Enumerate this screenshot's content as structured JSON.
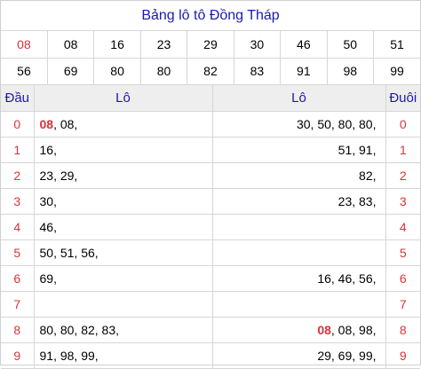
{
  "title": "Bảng lô tô Đồng Tháp",
  "numbers": {
    "row1": [
      "08",
      "08",
      "16",
      "23",
      "29",
      "30",
      "46",
      "50",
      "51"
    ],
    "row2": [
      "56",
      "69",
      "80",
      "80",
      "82",
      "83",
      "91",
      "98",
      "99"
    ],
    "highlight_index": 0
  },
  "headers": {
    "dau": "Đầu",
    "lo_left": "Lô",
    "lo_right": "Lô",
    "duoi": "Đuôi"
  },
  "rows": [
    {
      "digit": "0",
      "left_hl": "08",
      "left": ", 08,",
      "right_hl": "",
      "right": "30, 50, 80, 80,",
      "digit_right": "0"
    },
    {
      "digit": "1",
      "left_hl": "",
      "left": "16,",
      "right_hl": "",
      "right": "51, 91,",
      "digit_right": "1"
    },
    {
      "digit": "2",
      "left_hl": "",
      "left": "23, 29,",
      "right_hl": "",
      "right": "82,",
      "digit_right": "2"
    },
    {
      "digit": "3",
      "left_hl": "",
      "left": "30,",
      "right_hl": "",
      "right": "23, 83,",
      "digit_right": "3"
    },
    {
      "digit": "4",
      "left_hl": "",
      "left": "46,",
      "right_hl": "",
      "right": "",
      "digit_right": "4"
    },
    {
      "digit": "5",
      "left_hl": "",
      "left": "50, 51, 56,",
      "right_hl": "",
      "right": "",
      "digit_right": "5"
    },
    {
      "digit": "6",
      "left_hl": "",
      "left": "69,",
      "right_hl": "",
      "right": "16, 46, 56,",
      "digit_right": "6"
    },
    {
      "digit": "7",
      "left_hl": "",
      "left": "",
      "right_hl": "",
      "right": "",
      "digit_right": "7"
    },
    {
      "digit": "8",
      "left_hl": "",
      "left": "80, 80, 82, 83,",
      "right_hl": "08",
      "right": ", 08, 98,",
      "digit_right": "8"
    },
    {
      "digit": "9",
      "left_hl": "",
      "left": "91, 98, 99,",
      "right_hl": "",
      "right": "29, 69, 99,",
      "digit_right": "9"
    }
  ],
  "colors": {
    "accent": "#1a1ab0",
    "highlight": "#d9343a",
    "header_bg": "#eeeeee",
    "border": "#d6d6d6"
  }
}
